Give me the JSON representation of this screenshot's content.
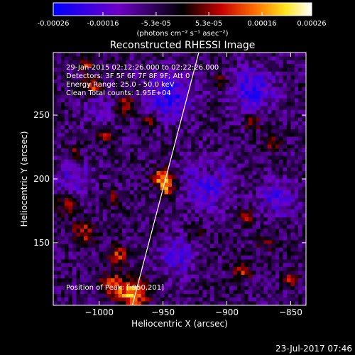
{
  "colorbar": {
    "tick_labels": [
      "-0.00026",
      "-0.00016",
      "-5.3e-05",
      "5.3e-05",
      "0.00016",
      "0.00026"
    ],
    "tick_values": [
      -0.00026,
      -0.00016,
      -5.3e-05,
      5.3e-05,
      0.00016,
      0.00026
    ],
    "range": [
      -0.00026,
      0.00026
    ],
    "unit_label": "(photons cm⁻² s⁻¹ asec⁻²)"
  },
  "title": "Reconstructed RHESSI Image",
  "info_lines": [
    "29-Jan-2015 02:12:26.000 to 02:22:26.000",
    "Detectors: 3F 5F 6F 7F 8F 9F; Att 0",
    "Energy Range: 25.0 - 50.0 keV",
    "Clean     Total counts: 1.95E+04"
  ],
  "peak_label": "Position of Peak: [-950,201]",
  "footer_date": "23-Jul-2017 07:46",
  "chart_data": {
    "type": "heatmap",
    "title": "Reconstructed RHESSI Image",
    "xlabel": "Heliocentric X (arcsec)",
    "ylabel": "Heliocentric Y (arcsec)",
    "xlim": [
      -1036,
      -838
    ],
    "ylim": [
      101,
      299
    ],
    "x_ticks": [
      -1000,
      -950,
      -900,
      -850
    ],
    "x_tick_labels": [
      "−1000",
      "−950",
      "−900",
      "−850"
    ],
    "y_ticks": [
      150,
      200,
      250
    ],
    "y_tick_labels": [
      "150",
      "200",
      "250"
    ],
    "colormap": "red-temperature (blue-purple-black-red-yellow-white)",
    "peak": {
      "x": -950,
      "y": 201
    },
    "limb_line": {
      "points": [
        [
          -974,
          101
        ],
        [
          -922,
          299
        ]
      ],
      "color": "#ffffff"
    },
    "sources": [
      {
        "x": -950,
        "y": 201,
        "value": 0.00026,
        "sigma": 5
      },
      {
        "x": -946,
        "y": 191,
        "value": 0.00016,
        "sigma": 4
      },
      {
        "x": -974,
        "y": 110,
        "value": 0.00024,
        "sigma": 8
      },
      {
        "x": -990,
        "y": 118,
        "value": 0.00015,
        "sigma": 6
      },
      {
        "x": -985,
        "y": 140,
        "value": 0.00014,
        "sigma": 5
      },
      {
        "x": -1012,
        "y": 158,
        "value": 0.00014,
        "sigma": 6
      },
      {
        "x": -1026,
        "y": 180,
        "value": 0.00012,
        "sigma": 5
      },
      {
        "x": -1005,
        "y": 272,
        "value": 0.00016,
        "sigma": 5
      },
      {
        "x": -980,
        "y": 258,
        "value": 0.00014,
        "sigma": 5
      },
      {
        "x": -995,
        "y": 235,
        "value": 0.00012,
        "sigma": 4
      },
      {
        "x": -1020,
        "y": 220,
        "value": 0.0001,
        "sigma": 4
      },
      {
        "x": -880,
        "y": 245,
        "value": 0.00014,
        "sigma": 4
      },
      {
        "x": -865,
        "y": 228,
        "value": 0.00014,
        "sigma": 4
      },
      {
        "x": -885,
        "y": 170,
        "value": 0.00012,
        "sigma": 4
      },
      {
        "x": -870,
        "y": 150,
        "value": 0.0001,
        "sigma": 4
      },
      {
        "x": -888,
        "y": 128,
        "value": 0.00014,
        "sigma": 5
      },
      {
        "x": -850,
        "y": 122,
        "value": 0.00012,
        "sigma": 4
      },
      {
        "x": -925,
        "y": 158,
        "value": 8e-05,
        "sigma": 4
      },
      {
        "x": -1010,
        "y": 290,
        "value": 0.00013,
        "sigma": 4
      },
      {
        "x": -905,
        "y": 275,
        "value": 0.00012,
        "sigma": 4
      },
      {
        "x": -955,
        "y": 160,
        "value": 0.0001,
        "sigma": 3
      },
      {
        "x": -960,
        "y": 245,
        "value": 0.00011,
        "sigma": 4
      },
      {
        "x": -990,
        "y": 185,
        "value": 8e-05,
        "sigma": 4
      },
      {
        "x": -915,
        "y": 205,
        "value": 9e-05,
        "sigma": 4
      },
      {
        "x": -945,
        "y": 265,
        "value": -0.00016,
        "sigma": 12
      },
      {
        "x": -915,
        "y": 195,
        "value": -0.00012,
        "sigma": 14
      },
      {
        "x": -880,
        "y": 270,
        "value": -0.00014,
        "sigma": 12
      },
      {
        "x": -940,
        "y": 140,
        "value": -0.00012,
        "sigma": 10
      },
      {
        "x": -1020,
        "y": 200,
        "value": -0.0001,
        "sigma": 10
      },
      {
        "x": -860,
        "y": 185,
        "value": -0.00012,
        "sigma": 10
      },
      {
        "x": -1000,
        "y": 255,
        "value": -8e-05,
        "sigma": 8
      }
    ]
  }
}
